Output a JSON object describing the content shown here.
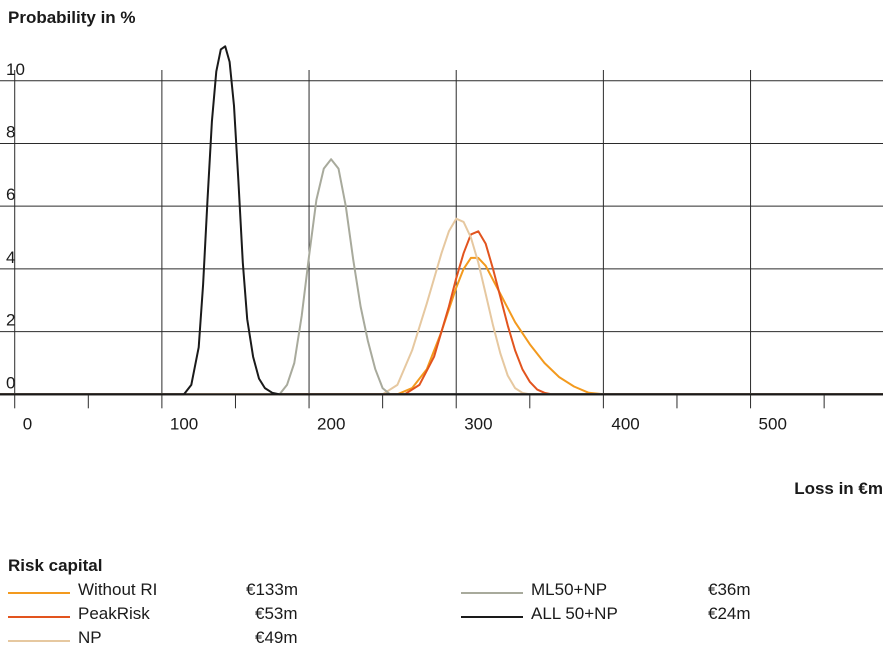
{
  "chart_data": {
    "type": "line",
    "ylabel": "Probability in %",
    "xlabel": "Loss in €m",
    "xlim": [
      -10,
      590
    ],
    "ylim": [
      -0.5,
      11.3
    ],
    "xticks": [
      0,
      100,
      200,
      300,
      400,
      500
    ],
    "yticks": [
      0,
      2,
      4,
      6,
      8,
      10
    ],
    "grid": true,
    "series": [
      {
        "name": "Without RI",
        "color": "#f39a1e",
        "x": [
          -10,
          260,
          270,
          280,
          290,
          300,
          305,
          310,
          315,
          320,
          330,
          340,
          350,
          360,
          370,
          380,
          390,
          400,
          590
        ],
        "y": [
          0,
          0,
          0.2,
          0.8,
          2.0,
          3.4,
          4.0,
          4.35,
          4.35,
          4.1,
          3.2,
          2.3,
          1.6,
          1.0,
          0.55,
          0.25,
          0.05,
          0,
          0
        ]
      },
      {
        "name": "PeakRisk",
        "color": "#e2541e",
        "x": [
          -10,
          265,
          275,
          285,
          295,
          300,
          305,
          310,
          315,
          320,
          325,
          330,
          335,
          340,
          345,
          350,
          355,
          360,
          365,
          590
        ],
        "y": [
          0,
          0,
          0.3,
          1.2,
          2.8,
          3.7,
          4.5,
          5.1,
          5.2,
          4.8,
          4.0,
          3.1,
          2.2,
          1.4,
          0.8,
          0.4,
          0.15,
          0.05,
          0,
          0
        ]
      },
      {
        "name": "NP",
        "color": "#e6c8a0",
        "x": [
          -10,
          250,
          260,
          270,
          280,
          290,
          295,
          300,
          305,
          310,
          315,
          320,
          325,
          330,
          335,
          340,
          345,
          350,
          590
        ],
        "y": [
          0,
          0,
          0.3,
          1.4,
          2.9,
          4.5,
          5.2,
          5.6,
          5.5,
          5.0,
          4.2,
          3.2,
          2.2,
          1.3,
          0.6,
          0.2,
          0.05,
          0,
          0
        ]
      },
      {
        "name": "ML50+NP",
        "color": "#a8aa9c",
        "x": [
          -10,
          180,
          185,
          190,
          195,
          200,
          205,
          210,
          215,
          220,
          225,
          230,
          235,
          240,
          245,
          250,
          255,
          590
        ],
        "y": [
          0,
          0,
          0.3,
          1.0,
          2.5,
          4.4,
          6.2,
          7.2,
          7.5,
          7.2,
          6.0,
          4.3,
          2.8,
          1.7,
          0.8,
          0.2,
          0,
          0
        ]
      },
      {
        "name": "ALL 50+NP",
        "color": "#1a1a1a",
        "x": [
          -10,
          115,
          120,
          125,
          128,
          131,
          134,
          137,
          140,
          143,
          146,
          149,
          152,
          155,
          158,
          162,
          166,
          170,
          175,
          180,
          590
        ],
        "y": [
          0,
          0,
          0.3,
          1.5,
          3.5,
          6.2,
          8.7,
          10.3,
          11.0,
          11.1,
          10.6,
          9.2,
          6.8,
          4.2,
          2.4,
          1.2,
          0.5,
          0.2,
          0.05,
          0,
          0
        ]
      }
    ]
  },
  "risk_capital": {
    "title": "Risk capital",
    "items": [
      {
        "name": "Without RI",
        "value": "€133m"
      },
      {
        "name": "PeakRisk",
        "value": "€53m"
      },
      {
        "name": "NP",
        "value": "€49m"
      },
      {
        "name": "ML50+NP",
        "value": "€36m"
      },
      {
        "name": "ALL 50+NP",
        "value": "€24m"
      }
    ]
  },
  "colors": {
    "grid": "#2b2b2b",
    "axis": "#1a1a1a"
  }
}
